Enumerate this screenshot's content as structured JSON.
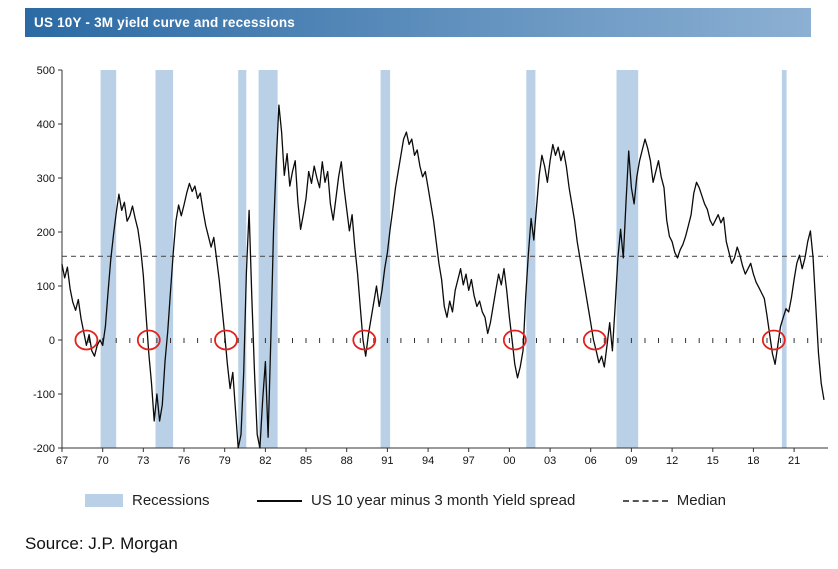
{
  "title_bar": {
    "text": "US 10Y - 3M yield curve and recessions"
  },
  "legend": {
    "recessions": "Recessions",
    "spread": "US 10 year minus 3 month Yield spread",
    "median": "Median"
  },
  "source": "Source: J.P. Morgan",
  "chart_data": {
    "type": "line",
    "title": "US 10Y - 3M yield curve and recessions",
    "xlabel": "",
    "ylabel": "",
    "grid": false,
    "legend_position": "bottom",
    "ylim": [
      -200,
      500
    ],
    "y_ticks": [
      500,
      400,
      300,
      200,
      100,
      0,
      -100,
      -200
    ],
    "xlim": [
      1967,
      2023.5
    ],
    "x_ticks": [
      {
        "year": 1967,
        "label": "67"
      },
      {
        "year": 1970,
        "label": "70"
      },
      {
        "year": 1973,
        "label": "73"
      },
      {
        "year": 1976,
        "label": "76"
      },
      {
        "year": 1979,
        "label": "79"
      },
      {
        "year": 1982,
        "label": "82"
      },
      {
        "year": 1985,
        "label": "85"
      },
      {
        "year": 1988,
        "label": "88"
      },
      {
        "year": 1991,
        "label": "91"
      },
      {
        "year": 1994,
        "label": "94"
      },
      {
        "year": 1997,
        "label": "97"
      },
      {
        "year": 2000,
        "label": "00"
      },
      {
        "year": 2003,
        "label": "03"
      },
      {
        "year": 2006,
        "label": "06"
      },
      {
        "year": 2009,
        "label": "09"
      },
      {
        "year": 2012,
        "label": "12"
      },
      {
        "year": 2015,
        "label": "15"
      },
      {
        "year": 2018,
        "label": "18"
      },
      {
        "year": 2021,
        "label": "21"
      }
    ],
    "median": 155,
    "recession_bands": [
      [
        1969.85,
        1971.0
      ],
      [
        1973.9,
        1975.2
      ],
      [
        1980.0,
        1980.6
      ],
      [
        1981.5,
        1982.9
      ],
      [
        1990.5,
        1991.2
      ],
      [
        2001.25,
        2001.92
      ],
      [
        2007.9,
        2009.5
      ],
      [
        2020.1,
        2020.45
      ]
    ],
    "inversion_circles": [
      1968.8,
      1973.4,
      1979.1,
      1989.3,
      2000.4,
      2006.3,
      2019.5
    ],
    "colors": {
      "band": "#b9d0e6",
      "line": "#0b0b0b",
      "median": "#555555",
      "circle": "#e3201b",
      "axis": "#333333"
    },
    "series": [
      {
        "name": "US 10 year minus 3 month Yield spread",
        "points": [
          [
            1967.0,
            140
          ],
          [
            1967.2,
            115
          ],
          [
            1967.4,
            135
          ],
          [
            1967.6,
            95
          ],
          [
            1967.8,
            70
          ],
          [
            1968.0,
            55
          ],
          [
            1968.2,
            75
          ],
          [
            1968.4,
            40
          ],
          [
            1968.6,
            15
          ],
          [
            1968.8,
            -10
          ],
          [
            1969.0,
            10
          ],
          [
            1969.2,
            -20
          ],
          [
            1969.4,
            -30
          ],
          [
            1969.6,
            -10
          ],
          [
            1969.8,
            0
          ],
          [
            1970.0,
            -10
          ],
          [
            1970.2,
            25
          ],
          [
            1970.4,
            90
          ],
          [
            1970.6,
            150
          ],
          [
            1970.8,
            195
          ],
          [
            1971.0,
            235
          ],
          [
            1971.2,
            270
          ],
          [
            1971.4,
            240
          ],
          [
            1971.6,
            255
          ],
          [
            1971.8,
            220
          ],
          [
            1972.0,
            230
          ],
          [
            1972.2,
            248
          ],
          [
            1972.4,
            225
          ],
          [
            1972.6,
            205
          ],
          [
            1972.8,
            170
          ],
          [
            1973.0,
            120
          ],
          [
            1973.2,
            45
          ],
          [
            1973.4,
            -25
          ],
          [
            1973.6,
            -80
          ],
          [
            1973.8,
            -150
          ],
          [
            1974.0,
            -100
          ],
          [
            1974.2,
            -150
          ],
          [
            1974.4,
            -120
          ],
          [
            1974.6,
            -40
          ],
          [
            1974.8,
            15
          ],
          [
            1975.0,
            90
          ],
          [
            1975.2,
            160
          ],
          [
            1975.4,
            220
          ],
          [
            1975.6,
            250
          ],
          [
            1975.8,
            230
          ],
          [
            1976.0,
            250
          ],
          [
            1976.2,
            272
          ],
          [
            1976.4,
            290
          ],
          [
            1976.6,
            275
          ],
          [
            1976.8,
            285
          ],
          [
            1977.0,
            262
          ],
          [
            1977.2,
            272
          ],
          [
            1977.4,
            240
          ],
          [
            1977.6,
            212
          ],
          [
            1977.8,
            192
          ],
          [
            1978.0,
            172
          ],
          [
            1978.2,
            190
          ],
          [
            1978.4,
            150
          ],
          [
            1978.6,
            110
          ],
          [
            1978.8,
            60
          ],
          [
            1979.0,
            10
          ],
          [
            1979.2,
            -45
          ],
          [
            1979.4,
            -90
          ],
          [
            1979.6,
            -60
          ],
          [
            1979.8,
            -130
          ],
          [
            1980.0,
            -200
          ],
          [
            1980.2,
            -175
          ],
          [
            1980.4,
            -60
          ],
          [
            1980.6,
            125
          ],
          [
            1980.8,
            240
          ],
          [
            1981.0,
            80
          ],
          [
            1981.2,
            -60
          ],
          [
            1981.4,
            -175
          ],
          [
            1981.6,
            -200
          ],
          [
            1981.8,
            -110
          ],
          [
            1982.0,
            -40
          ],
          [
            1982.2,
            -180
          ],
          [
            1982.4,
            0
          ],
          [
            1982.6,
            200
          ],
          [
            1982.8,
            330
          ],
          [
            1983.0,
            435
          ],
          [
            1983.2,
            385
          ],
          [
            1983.4,
            305
          ],
          [
            1983.6,
            345
          ],
          [
            1983.8,
            285
          ],
          [
            1984.0,
            312
          ],
          [
            1984.2,
            332
          ],
          [
            1984.4,
            255
          ],
          [
            1984.6,
            205
          ],
          [
            1984.8,
            232
          ],
          [
            1985.0,
            262
          ],
          [
            1985.2,
            312
          ],
          [
            1985.4,
            290
          ],
          [
            1985.6,
            322
          ],
          [
            1985.8,
            300
          ],
          [
            1986.0,
            282
          ],
          [
            1986.2,
            330
          ],
          [
            1986.4,
            292
          ],
          [
            1986.6,
            312
          ],
          [
            1986.8,
            252
          ],
          [
            1987.0,
            222
          ],
          [
            1987.2,
            262
          ],
          [
            1987.4,
            302
          ],
          [
            1987.6,
            330
          ],
          [
            1987.8,
            282
          ],
          [
            1988.0,
            242
          ],
          [
            1988.2,
            202
          ],
          [
            1988.4,
            232
          ],
          [
            1988.6,
            172
          ],
          [
            1988.8,
            122
          ],
          [
            1989.0,
            60
          ],
          [
            1989.2,
            0
          ],
          [
            1989.4,
            -30
          ],
          [
            1989.6,
            10
          ],
          [
            1989.8,
            40
          ],
          [
            1990.0,
            70
          ],
          [
            1990.2,
            100
          ],
          [
            1990.4,
            62
          ],
          [
            1990.6,
            92
          ],
          [
            1990.8,
            132
          ],
          [
            1991.0,
            162
          ],
          [
            1991.2,
            205
          ],
          [
            1991.4,
            242
          ],
          [
            1991.6,
            282
          ],
          [
            1991.8,
            312
          ],
          [
            1992.0,
            342
          ],
          [
            1992.2,
            372
          ],
          [
            1992.4,
            385
          ],
          [
            1992.6,
            362
          ],
          [
            1992.8,
            372
          ],
          [
            1993.0,
            342
          ],
          [
            1993.2,
            352
          ],
          [
            1993.4,
            322
          ],
          [
            1993.6,
            302
          ],
          [
            1993.8,
            312
          ],
          [
            1994.0,
            282
          ],
          [
            1994.2,
            252
          ],
          [
            1994.4,
            222
          ],
          [
            1994.6,
            182
          ],
          [
            1994.8,
            142
          ],
          [
            1995.0,
            112
          ],
          [
            1995.2,
            62
          ],
          [
            1995.4,
            42
          ],
          [
            1995.6,
            72
          ],
          [
            1995.8,
            52
          ],
          [
            1996.0,
            92
          ],
          [
            1996.2,
            112
          ],
          [
            1996.4,
            132
          ],
          [
            1996.6,
            102
          ],
          [
            1996.8,
            122
          ],
          [
            1997.0,
            92
          ],
          [
            1997.2,
            112
          ],
          [
            1997.4,
            82
          ],
          [
            1997.6,
            62
          ],
          [
            1997.8,
            72
          ],
          [
            1998.0,
            52
          ],
          [
            1998.2,
            42
          ],
          [
            1998.4,
            12
          ],
          [
            1998.6,
            32
          ],
          [
            1998.8,
            62
          ],
          [
            1999.0,
            92
          ],
          [
            1999.2,
            122
          ],
          [
            1999.4,
            102
          ],
          [
            1999.6,
            132
          ],
          [
            1999.8,
            92
          ],
          [
            2000.0,
            42
          ],
          [
            2000.2,
            0
          ],
          [
            2000.4,
            -45
          ],
          [
            2000.6,
            -70
          ],
          [
            2000.8,
            -50
          ],
          [
            2001.0,
            -20
          ],
          [
            2001.2,
            80
          ],
          [
            2001.4,
            160
          ],
          [
            2001.6,
            225
          ],
          [
            2001.8,
            185
          ],
          [
            2002.0,
            245
          ],
          [
            2002.2,
            305
          ],
          [
            2002.4,
            342
          ],
          [
            2002.6,
            322
          ],
          [
            2002.8,
            292
          ],
          [
            2003.0,
            332
          ],
          [
            2003.2,
            362
          ],
          [
            2003.4,
            342
          ],
          [
            2003.6,
            357
          ],
          [
            2003.8,
            332
          ],
          [
            2004.0,
            350
          ],
          [
            2004.2,
            322
          ],
          [
            2004.4,
            282
          ],
          [
            2004.6,
            252
          ],
          [
            2004.8,
            222
          ],
          [
            2005.0,
            182
          ],
          [
            2005.2,
            152
          ],
          [
            2005.4,
            122
          ],
          [
            2005.6,
            92
          ],
          [
            2005.8,
            62
          ],
          [
            2006.0,
            32
          ],
          [
            2006.2,
            0
          ],
          [
            2006.4,
            -20
          ],
          [
            2006.6,
            -42
          ],
          [
            2006.8,
            -30
          ],
          [
            2007.0,
            -50
          ],
          [
            2007.2,
            -10
          ],
          [
            2007.4,
            32
          ],
          [
            2007.6,
            -20
          ],
          [
            2007.8,
            62
          ],
          [
            2008.0,
            152
          ],
          [
            2008.2,
            205
          ],
          [
            2008.4,
            152
          ],
          [
            2008.6,
            255
          ],
          [
            2008.8,
            350
          ],
          [
            2009.0,
            282
          ],
          [
            2009.2,
            252
          ],
          [
            2009.4,
            302
          ],
          [
            2009.6,
            332
          ],
          [
            2009.8,
            352
          ],
          [
            2010.0,
            372
          ],
          [
            2010.2,
            355
          ],
          [
            2010.4,
            332
          ],
          [
            2010.6,
            292
          ],
          [
            2010.8,
            312
          ],
          [
            2011.0,
            332
          ],
          [
            2011.2,
            302
          ],
          [
            2011.4,
            282
          ],
          [
            2011.6,
            222
          ],
          [
            2011.8,
            192
          ],
          [
            2012.0,
            182
          ],
          [
            2012.2,
            162
          ],
          [
            2012.4,
            152
          ],
          [
            2012.6,
            167
          ],
          [
            2012.8,
            177
          ],
          [
            2013.0,
            192
          ],
          [
            2013.2,
            212
          ],
          [
            2013.4,
            232
          ],
          [
            2013.6,
            272
          ],
          [
            2013.8,
            292
          ],
          [
            2014.0,
            282
          ],
          [
            2014.2,
            267
          ],
          [
            2014.4,
            252
          ],
          [
            2014.6,
            242
          ],
          [
            2014.8,
            222
          ],
          [
            2015.0,
            212
          ],
          [
            2015.2,
            222
          ],
          [
            2015.4,
            232
          ],
          [
            2015.6,
            217
          ],
          [
            2015.8,
            227
          ],
          [
            2016.0,
            182
          ],
          [
            2016.2,
            162
          ],
          [
            2016.4,
            142
          ],
          [
            2016.6,
            152
          ],
          [
            2016.8,
            172
          ],
          [
            2017.0,
            157
          ],
          [
            2017.2,
            137
          ],
          [
            2017.4,
            122
          ],
          [
            2017.6,
            132
          ],
          [
            2017.8,
            142
          ],
          [
            2018.0,
            122
          ],
          [
            2018.2,
            107
          ],
          [
            2018.4,
            97
          ],
          [
            2018.6,
            87
          ],
          [
            2018.8,
            77
          ],
          [
            2019.0,
            45
          ],
          [
            2019.2,
            10
          ],
          [
            2019.4,
            -25
          ],
          [
            2019.6,
            -45
          ],
          [
            2019.8,
            -10
          ],
          [
            2020.0,
            25
          ],
          [
            2020.2,
            42
          ],
          [
            2020.4,
            58
          ],
          [
            2020.6,
            52
          ],
          [
            2020.8,
            78
          ],
          [
            2021.0,
            112
          ],
          [
            2021.2,
            142
          ],
          [
            2021.4,
            157
          ],
          [
            2021.6,
            132
          ],
          [
            2021.8,
            152
          ],
          [
            2022.0,
            182
          ],
          [
            2022.2,
            202
          ],
          [
            2022.4,
            152
          ],
          [
            2022.6,
            62
          ],
          [
            2022.8,
            -25
          ],
          [
            2023.0,
            -80
          ],
          [
            2023.2,
            -110
          ]
        ]
      }
    ]
  }
}
